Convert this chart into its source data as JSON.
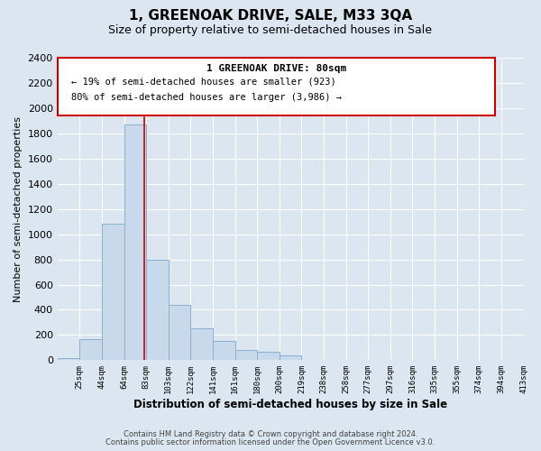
{
  "title": "1, GREENOAK DRIVE, SALE, M33 3QA",
  "subtitle": "Size of property relative to semi-detached houses in Sale",
  "xlabel": "Distribution of semi-detached houses by size in Sale",
  "ylabel": "Number of semi-detached properties",
  "bar_color": "#c8d9eb",
  "bar_edge_color": "#8ab0ce",
  "vline_x": 80,
  "vline_color": "#cc0000",
  "annotation_title": "1 GREENOAK DRIVE: 80sqm",
  "annotation_line1": "← 19% of semi-detached houses are smaller (923)",
  "annotation_line2": "80% of semi-detached houses are larger (3,986) →",
  "bins_left": [
    6,
    25,
    44,
    63,
    82,
    101,
    120,
    139,
    158,
    177,
    196,
    215,
    234,
    253,
    272,
    291,
    310,
    329,
    348,
    367,
    386
  ],
  "bin_width": 19,
  "bar_heights": [
    20,
    170,
    1080,
    1870,
    800,
    440,
    250,
    150,
    80,
    65,
    40,
    5,
    0,
    0,
    0,
    0,
    0,
    0,
    0,
    0,
    0
  ],
  "tick_labels": [
    "25sqm",
    "44sqm",
    "64sqm",
    "83sqm",
    "103sqm",
    "122sqm",
    "141sqm",
    "161sqm",
    "180sqm",
    "200sqm",
    "219sqm",
    "238sqm",
    "258sqm",
    "277sqm",
    "297sqm",
    "316sqm",
    "335sqm",
    "355sqm",
    "374sqm",
    "394sqm",
    "413sqm"
  ],
  "ylim": [
    0,
    2400
  ],
  "yticks": [
    0,
    200,
    400,
    600,
    800,
    1000,
    1200,
    1400,
    1600,
    1800,
    2000,
    2200,
    2400
  ],
  "footer_line1": "Contains HM Land Registry data © Crown copyright and database right 2024.",
  "footer_line2": "Contains public sector information licensed under the Open Government Licence v3.0.",
  "background_color": "#dce6f0",
  "plot_background": "#dce6f0",
  "grid_color": "#ffffff"
}
